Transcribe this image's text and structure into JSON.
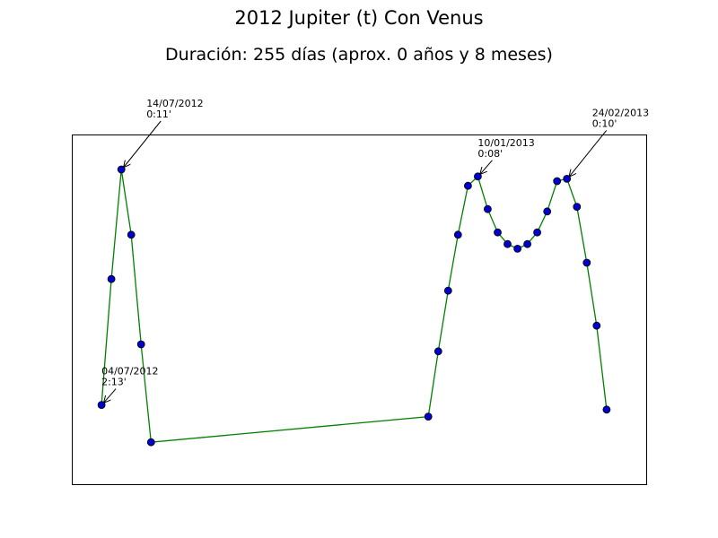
{
  "chart_data": {
    "type": "line",
    "title": "2012 Jupiter (t) Con Venus",
    "subtitle": "Duración: 255 días (aprox. 0 años y 8 meses)",
    "xlabel": "",
    "ylabel": "",
    "xlim": [
      -3,
      55
    ],
    "ylim": [
      0,
      15
    ],
    "grid": false,
    "axis_ticks": false,
    "colors": {
      "line": "#008000",
      "marker_fill": "#0000cc",
      "marker_edge": "#000000"
    },
    "series": [
      {
        "x": [
          0,
          1,
          2,
          3,
          4,
          5,
          33,
          34,
          35,
          36,
          37,
          38,
          39,
          40,
          41,
          42,
          43,
          44,
          45,
          46,
          47,
          48,
          49,
          50,
          51
        ],
        "y": [
          3.4,
          8.8,
          13.5,
          10.7,
          6.0,
          1.8,
          2.9,
          5.7,
          8.3,
          10.7,
          12.8,
          13.2,
          11.8,
          10.8,
          10.3,
          10.1,
          10.3,
          10.8,
          11.7,
          13.0,
          13.1,
          11.9,
          9.5,
          6.8,
          3.2
        ]
      }
    ],
    "annotations": [
      {
        "point_index": 0,
        "date": "04/07/2012",
        "value": "2:13'"
      },
      {
        "point_index": 2,
        "date": "14/07/2012",
        "value": "0:11'"
      },
      {
        "point_index": 11,
        "date": "10/01/2013",
        "value": "0:08'"
      },
      {
        "point_index": 20,
        "date": "24/02/2013",
        "value": "0:10'"
      }
    ]
  }
}
